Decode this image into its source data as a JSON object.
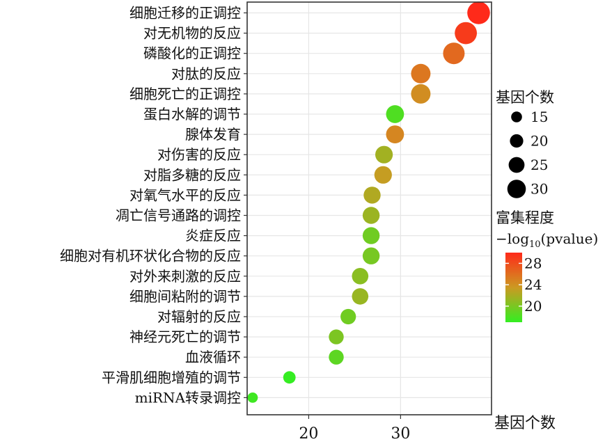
{
  "chart_data": {
    "type": "scatter",
    "title": "",
    "xlabel": "基因个数",
    "ylabel": "",
    "xlim": [
      13.3,
      39.9
    ],
    "xticks": [
      20,
      30
    ],
    "grid": true,
    "legend_position": "right",
    "categories": [
      "细胞迁移的正调控",
      "对无机物的反应",
      "磷酸化的正调控",
      "对肽的反应",
      "细胞死亡的正调控",
      "蛋白水解的调节",
      "腺体发育",
      "对伤害的反应",
      "对脂多糖的反应",
      "对氧气水平的反应",
      "凋亡信号通路的调控",
      "炎症反应",
      "细胞对有机环状化合物的反应",
      "对外来刺激的反应",
      "细胞间粘附的调节",
      "对辐射的反应",
      "神经元死亡的调节",
      "血液循环",
      "平滑肌细胞增殖的调节",
      "miRNA转录调控"
    ],
    "series": [
      {
        "x": [
          38.5,
          37.1,
          35.8,
          32.2,
          32.2,
          29.4,
          29.4,
          28.2,
          28.1,
          26.9,
          26.8,
          26.8,
          26.8,
          25.6,
          25.6,
          24.3,
          23.0,
          23.0,
          17.9,
          13.9
        ],
        "gene_count": [
          38,
          37,
          36,
          32,
          32,
          29,
          29,
          28,
          28,
          27,
          27,
          27,
          27,
          26,
          26,
          24,
          23,
          23,
          18,
          14
        ],
        "neg_log10_pvalue": [
          30.0,
          29.0,
          26.3,
          25.5,
          24.2,
          18.2,
          24.6,
          21.7,
          23.2,
          22.3,
          21.4,
          19.6,
          19.9,
          20.7,
          21.3,
          19.6,
          20.1,
          18.8,
          17.1,
          17.5
        ]
      }
    ],
    "size_legend": {
      "title": "基因个数",
      "values": [
        15,
        20,
        25,
        30
      ],
      "labels": [
        "15",
        "20",
        "25",
        "30"
      ]
    },
    "color_legend": {
      "title": "富集程度",
      "subtitle_prefix": "−log",
      "subtitle_sub": "10",
      "subtitle_suffix": "(pvalue)",
      "ticks": [
        28,
        24,
        20
      ],
      "tick_labels": [
        "28",
        "24",
        "20"
      ],
      "range": [
        17,
        30
      ],
      "low_color": "#33ee22",
      "mid_color": "#cc9922",
      "high_color": "#ff2a1a"
    },
    "colors": {
      "panel_background": "#ffffff",
      "grid": "#e6e6e6",
      "panel_border": "#333333"
    }
  }
}
